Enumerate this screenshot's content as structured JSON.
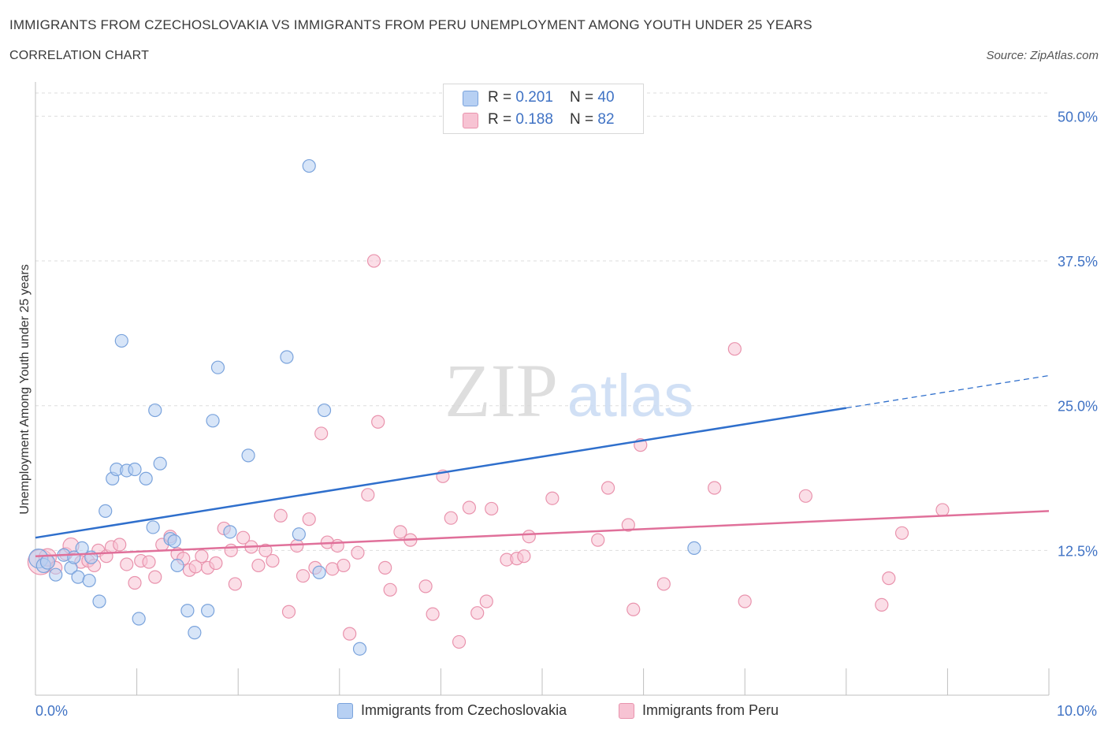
{
  "header": {
    "title": "IMMIGRANTS FROM CZECHOSLOVAKIA VS IMMIGRANTS FROM PERU UNEMPLOYMENT AMONG YOUTH UNDER 25 YEARS",
    "subtitle": "CORRELATION CHART",
    "source": "Source: ZipAtlas.com"
  },
  "watermark": {
    "zip": "ZIP",
    "atlas": "atlas"
  },
  "legend_top": {
    "rows": [
      {
        "r_label": "R = ",
        "r_value": "0.201",
        "n_label": "N = ",
        "n_value": "40"
      },
      {
        "r_label": "R = ",
        "r_value": "0.188",
        "n_label": "N = ",
        "n_value": "82"
      }
    ]
  },
  "colors": {
    "czech_fill": "#b7d0f3",
    "czech_stroke": "#7aa3dc",
    "czech_line": "#2f6fcc",
    "peru_fill": "#f7c3d3",
    "peru_stroke": "#e993ad",
    "peru_line": "#e0709a",
    "grid": "#dddddd",
    "axis_text": "#3f72c4"
  },
  "chart_data": {
    "type": "scatter",
    "title": "IMMIGRANTS FROM CZECHOSLOVAKIA VS IMMIGRANTS FROM PERU UNEMPLOYMENT AMONG YOUTH UNDER 25 YEARS",
    "subtitle": "CORRELATION CHART",
    "xlabel": "",
    "ylabel": "Unemployment Among Youth under 25 years",
    "xlim": [
      0,
      10
    ],
    "ylim": [
      0,
      50
    ],
    "x_ticks": [
      "0.0%",
      "10.0%"
    ],
    "y_ticks": [
      {
        "value": 12.5,
        "label": "12.5%"
      },
      {
        "value": 25.0,
        "label": "25.0%"
      },
      {
        "value": 37.5,
        "label": "37.5%"
      },
      {
        "value": 50.0,
        "label": "50.0%"
      }
    ],
    "grid": true,
    "legend": "bottom-center",
    "series": [
      {
        "name": "Immigrants from Czechoslovakia",
        "R": 0.201,
        "N": 40,
        "trend": {
          "x0": 0,
          "y0": 13.6,
          "x1": 8.0,
          "y1": 24.8,
          "dash_to_x": 10.0,
          "dash_to_y": 27.6
        },
        "points": [
          [
            0.03,
            11.8,
            12
          ],
          [
            0.08,
            11.2,
            9
          ],
          [
            0.12,
            11.5,
            9
          ],
          [
            0.2,
            10.4,
            8
          ],
          [
            0.28,
            12.1,
            8
          ],
          [
            0.35,
            11.0,
            8
          ],
          [
            0.38,
            11.9,
            8
          ],
          [
            0.42,
            10.2,
            8
          ],
          [
            0.46,
            12.7,
            8
          ],
          [
            0.53,
            9.9,
            8
          ],
          [
            0.55,
            11.9,
            8
          ],
          [
            0.63,
            8.1,
            8
          ],
          [
            0.69,
            15.9,
            8
          ],
          [
            0.76,
            18.7,
            8
          ],
          [
            0.8,
            19.5,
            8
          ],
          [
            0.85,
            30.6,
            8
          ],
          [
            0.9,
            19.4,
            8
          ],
          [
            0.98,
            19.5,
            8
          ],
          [
            1.02,
            6.6,
            8
          ],
          [
            1.09,
            18.7,
            8
          ],
          [
            1.16,
            14.5,
            8
          ],
          [
            1.18,
            24.6,
            8
          ],
          [
            1.23,
            20.0,
            8
          ],
          [
            1.33,
            13.5,
            8
          ],
          [
            1.4,
            11.2,
            8
          ],
          [
            1.37,
            13.3,
            8
          ],
          [
            1.5,
            7.3,
            8
          ],
          [
            1.57,
            5.4,
            8
          ],
          [
            1.7,
            7.3,
            8
          ],
          [
            1.75,
            23.7,
            8
          ],
          [
            1.8,
            28.3,
            8
          ],
          [
            1.92,
            14.1,
            8
          ],
          [
            2.1,
            20.7,
            8
          ],
          [
            2.48,
            29.2,
            8
          ],
          [
            2.6,
            13.9,
            8
          ],
          [
            2.7,
            45.7,
            8
          ],
          [
            2.8,
            10.6,
            8
          ],
          [
            2.85,
            24.6,
            8
          ],
          [
            3.2,
            4.0,
            8
          ],
          [
            6.5,
            12.7,
            8
          ]
        ]
      },
      {
        "name": "Immigrants from Peru",
        "R": 0.188,
        "N": 82,
        "trend": {
          "x0": 0,
          "y0": 12.0,
          "x1": 10.0,
          "y1": 15.9
        },
        "points": [
          [
            0.05,
            11.5,
            16
          ],
          [
            0.12,
            11.9,
            11
          ],
          [
            0.2,
            11.0,
            8
          ],
          [
            0.3,
            12.2,
            8
          ],
          [
            0.35,
            12.9,
            10
          ],
          [
            0.45,
            11.5,
            8
          ],
          [
            0.52,
            11.6,
            8
          ],
          [
            0.58,
            11.2,
            8
          ],
          [
            0.62,
            12.5,
            8
          ],
          [
            0.7,
            12.0,
            8
          ],
          [
            0.75,
            12.8,
            8
          ],
          [
            0.83,
            13.0,
            8
          ],
          [
            0.9,
            11.3,
            8
          ],
          [
            0.98,
            9.7,
            8
          ],
          [
            1.04,
            11.6,
            8
          ],
          [
            1.12,
            11.5,
            8
          ],
          [
            1.18,
            10.2,
            8
          ],
          [
            1.25,
            13.0,
            8
          ],
          [
            1.33,
            13.7,
            8
          ],
          [
            1.4,
            12.2,
            8
          ],
          [
            1.46,
            11.8,
            8
          ],
          [
            1.52,
            10.8,
            8
          ],
          [
            1.58,
            11.1,
            8
          ],
          [
            1.64,
            12.0,
            8
          ],
          [
            1.7,
            11.0,
            8
          ],
          [
            1.78,
            11.4,
            8
          ],
          [
            1.86,
            14.4,
            8
          ],
          [
            1.93,
            12.5,
            8
          ],
          [
            1.97,
            9.6,
            8
          ],
          [
            2.05,
            13.6,
            8
          ],
          [
            2.13,
            12.8,
            8
          ],
          [
            2.2,
            11.2,
            8
          ],
          [
            2.27,
            12.5,
            8
          ],
          [
            2.34,
            11.6,
            8
          ],
          [
            2.42,
            15.5,
            8
          ],
          [
            2.5,
            7.2,
            8
          ],
          [
            2.58,
            12.9,
            8
          ],
          [
            2.64,
            10.3,
            8
          ],
          [
            2.7,
            15.2,
            8
          ],
          [
            2.76,
            11.0,
            8
          ],
          [
            2.82,
            22.6,
            8
          ],
          [
            2.88,
            13.2,
            8
          ],
          [
            2.93,
            10.9,
            8
          ],
          [
            2.98,
            12.9,
            8
          ],
          [
            3.04,
            11.2,
            8
          ],
          [
            3.1,
            5.3,
            8
          ],
          [
            3.18,
            12.3,
            8
          ],
          [
            3.28,
            17.3,
            8
          ],
          [
            3.34,
            37.5,
            8
          ],
          [
            3.38,
            23.6,
            8
          ],
          [
            3.45,
            11.0,
            8
          ],
          [
            3.5,
            9.1,
            8
          ],
          [
            3.6,
            14.1,
            8
          ],
          [
            3.7,
            13.4,
            8
          ],
          [
            3.85,
            9.4,
            8
          ],
          [
            3.92,
            7.0,
            8
          ],
          [
            4.02,
            18.9,
            8
          ],
          [
            4.1,
            15.3,
            8
          ],
          [
            4.18,
            4.6,
            8
          ],
          [
            4.28,
            16.2,
            8
          ],
          [
            4.36,
            7.1,
            8
          ],
          [
            4.45,
            8.1,
            8
          ],
          [
            4.5,
            16.1,
            8
          ],
          [
            4.65,
            11.7,
            8
          ],
          [
            4.75,
            11.8,
            8
          ],
          [
            4.82,
            12.0,
            8
          ],
          [
            4.87,
            13.7,
            8
          ],
          [
            5.1,
            17.0,
            8
          ],
          [
            5.55,
            13.4,
            8
          ],
          [
            5.65,
            17.9,
            8
          ],
          [
            5.85,
            14.7,
            8
          ],
          [
            5.9,
            7.4,
            8
          ],
          [
            5.97,
            21.6,
            8
          ],
          [
            6.2,
            9.6,
            8
          ],
          [
            6.7,
            17.9,
            8
          ],
          [
            6.9,
            29.9,
            8
          ],
          [
            7.0,
            8.1,
            8
          ],
          [
            7.6,
            17.2,
            8
          ],
          [
            8.35,
            7.8,
            8
          ],
          [
            8.42,
            10.1,
            8
          ],
          [
            8.55,
            14.0,
            8
          ],
          [
            8.95,
            16.0,
            8
          ]
        ]
      }
    ]
  }
}
